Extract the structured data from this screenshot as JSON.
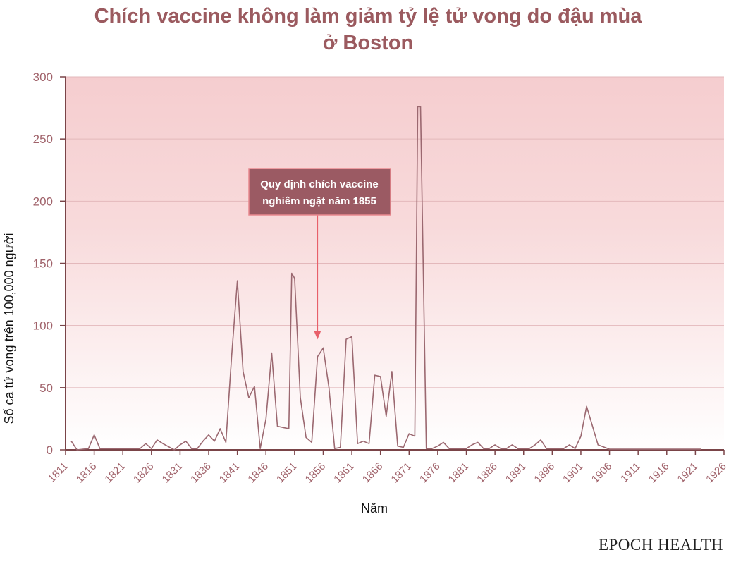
{
  "title_line1": "Chích vaccine không làm giảm tỷ lệ tử vong do đậu mùa",
  "title_line2": "ở Boston",
  "brand": "EPOCH HEALTH",
  "chart_data": {
    "type": "line",
    "title": "Chích vaccine không làm giảm tỷ lệ tử vong do đậu mùa ở Boston",
    "xlabel": "Năm",
    "ylabel": "Số ca tử vong trên 100,000 người",
    "xlim": [
      1811,
      1926
    ],
    "ylim": [
      0,
      300
    ],
    "xticks": [
      1811,
      1816,
      1821,
      1826,
      1831,
      1836,
      1841,
      1846,
      1851,
      1856,
      1861,
      1866,
      1871,
      1876,
      1881,
      1886,
      1891,
      1896,
      1901,
      1906,
      1911,
      1916,
      1921,
      1926
    ],
    "yticks": [
      0,
      50,
      100,
      150,
      200,
      250,
      300
    ],
    "grid": true,
    "colors": {
      "line": "#9b6870",
      "axis": "#7a4448",
      "tick_label": "#a0626a",
      "annotation_box": "#9b5a63",
      "annotation_border": "#e8888e",
      "arrow": "#e8606a"
    },
    "annotation": {
      "line1": "Quy định chích vaccine",
      "line2": "nghiêm ngặt năm 1855",
      "year": 1855
    },
    "series": [
      {
        "x": [
          1812,
          1813,
          1815,
          1816,
          1817,
          1820,
          1824,
          1825,
          1826,
          1827,
          1828,
          1830,
          1831,
          1832,
          1833,
          1834,
          1835,
          1836,
          1837,
          1838,
          1839,
          1840,
          1841,
          1842,
          1843,
          1844,
          1845,
          1846,
          1847,
          1848,
          1849,
          1850,
          1850.5,
          1851,
          1852,
          1853,
          1854,
          1855,
          1856,
          1857,
          1858,
          1859,
          1860,
          1861,
          1862,
          1863,
          1864,
          1865,
          1866,
          1867,
          1868,
          1869,
          1870,
          1871,
          1872,
          1872.5,
          1873,
          1874,
          1875,
          1876,
          1877,
          1878,
          1880,
          1881,
          1882,
          1883,
          1884,
          1885,
          1886,
          1887,
          1888,
          1889,
          1890,
          1892,
          1893,
          1894,
          1895,
          1897,
          1898,
          1899,
          1900,
          1901,
          1902,
          1904,
          1906,
          1922
        ],
        "y": [
          7,
          0,
          1,
          12,
          1,
          1,
          1,
          5,
          1,
          8,
          5,
          0,
          4,
          7,
          1,
          1,
          7,
          12,
          7,
          17,
          6,
          75,
          136,
          63,
          42,
          51,
          1,
          25,
          78,
          19,
          18,
          17,
          142,
          138,
          42,
          10,
          6,
          75,
          82,
          50,
          1,
          2,
          89,
          91,
          5,
          7,
          5,
          60,
          59,
          27,
          63,
          3,
          2,
          13,
          11,
          276,
          276,
          1,
          1,
          3,
          6,
          1,
          1,
          1,
          4,
          6,
          1,
          1,
          4,
          1,
          1,
          4,
          1,
          1,
          4,
          8,
          1,
          1,
          1,
          4,
          1,
          11,
          35,
          4,
          0.5,
          0.5
        ]
      }
    ]
  }
}
